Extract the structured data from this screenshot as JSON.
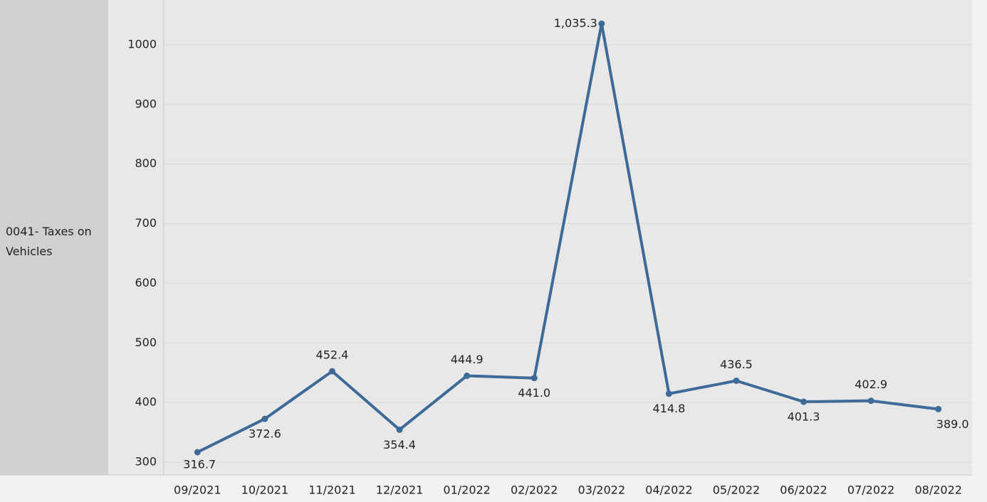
{
  "chart_data": {
    "type": "line",
    "row_label": "0041- Taxes on Vehicles",
    "categories": [
      "09/2021",
      "10/2021",
      "11/2021",
      "12/2021",
      "01/2022",
      "02/2022",
      "03/2022",
      "04/2022",
      "05/2022",
      "06/2022",
      "07/2022",
      "08/2022"
    ],
    "series": [
      {
        "name": "0041- Taxes on Vehicles",
        "color": "#3e6a98",
        "values": [
          316.7,
          372.6,
          452.4,
          354.4,
          444.9,
          441.0,
          1035.3,
          414.8,
          436.5,
          401.3,
          402.9,
          389.0
        ],
        "value_labels": [
          "316.7",
          "372.6",
          "452.4",
          "354.4",
          "444.9",
          "441.0",
          "1,035.3",
          "414.8",
          "436.5",
          "401.3",
          "402.9",
          "389.0"
        ]
      }
    ],
    "ylim": [
      278.5,
      1072.7
    ],
    "yticks": [
      300,
      400,
      500,
      600,
      700,
      800,
      900,
      1000
    ],
    "grid": true
  }
}
